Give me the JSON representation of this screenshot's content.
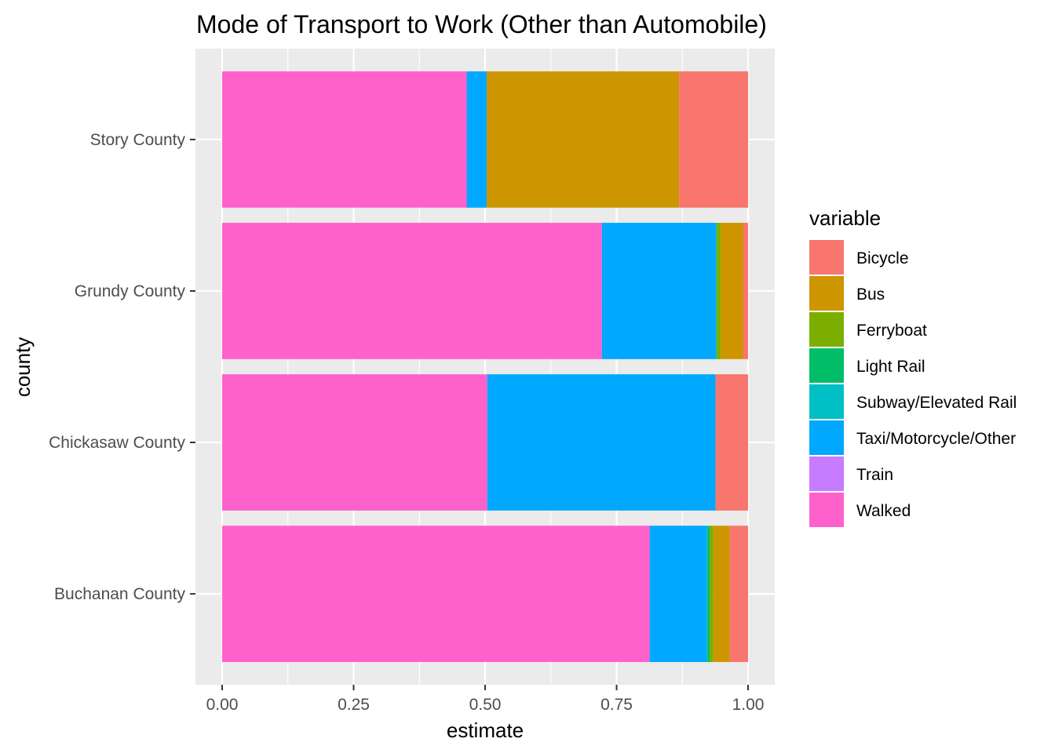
{
  "chart_data": {
    "type": "bar",
    "orientation": "horizontal",
    "stacked": "fill",
    "title": "Mode of Transport to Work (Other than Automobile)",
    "xlabel": "estimate",
    "ylabel": "county",
    "xlim": [
      0,
      1
    ],
    "x_ticks": [
      "0.00",
      "0.25",
      "0.50",
      "0.75",
      "1.00"
    ],
    "categories": [
      "Buchanan County",
      "Chickasaw County",
      "Grundy County",
      "Story County"
    ],
    "legend_title": "variable",
    "legend_position": "right",
    "grid": true,
    "stack_order": [
      "Walked",
      "Train",
      "Taxi/Motorcycle/Other",
      "Subway/Elevated Rail",
      "Light Rail",
      "Ferryboat",
      "Bus",
      "Bicycle"
    ],
    "series": [
      {
        "name": "Bicycle",
        "color": "#F8766D",
        "values": [
          0.035,
          0.062,
          0.009,
          0.131
        ]
      },
      {
        "name": "Bus",
        "color": "#CD9600",
        "values": [
          0.031,
          0.0,
          0.043,
          0.366
        ]
      },
      {
        "name": "Ferryboat",
        "color": "#7CAE00",
        "values": [
          0.007,
          0.0,
          0.008,
          0.0
        ]
      },
      {
        "name": "Light Rail",
        "color": "#00BE67",
        "values": [
          0.004,
          0.0,
          0.0,
          0.0
        ]
      },
      {
        "name": "Subway/Elevated Rail",
        "color": "#00BFC4",
        "values": [
          0.002,
          0.0,
          0.0,
          0.0
        ]
      },
      {
        "name": "Taxi/Motorcycle/Other",
        "color": "#00A9FF",
        "values": [
          0.108,
          0.434,
          0.218,
          0.038
        ]
      },
      {
        "name": "Train",
        "color": "#C77CFF",
        "values": [
          0.0,
          0.0,
          0.0,
          0.0
        ]
      },
      {
        "name": "Walked",
        "color": "#FF61CC",
        "values": [
          0.813,
          0.504,
          0.722,
          0.465
        ]
      }
    ]
  }
}
